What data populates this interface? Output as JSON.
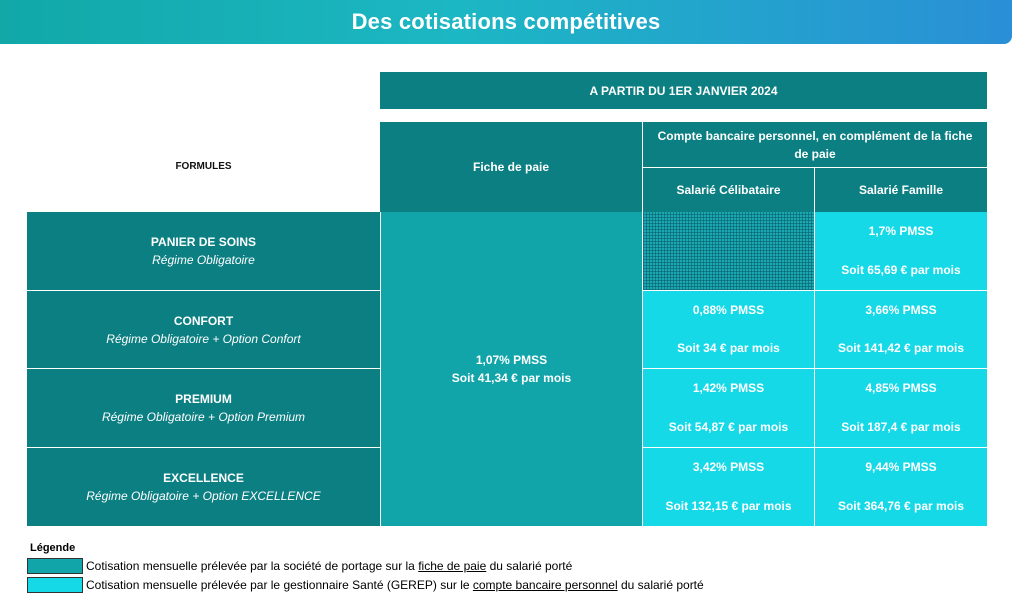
{
  "banner": {
    "title": "Des cotisations compétitives"
  },
  "header": {
    "period": "A PARTIR DU 1ER JANVIER 2024",
    "formules": "FORMULES",
    "fiche_de_paie": "Fiche de paie",
    "compte_bancaire": "Compte bancaire personnel, en complément de la fiche de paie",
    "salarie_celibataire": "Salarié Célibataire",
    "salarie_famille": "Salarié Famille"
  },
  "fiche_value": {
    "rate": "1,07% PMSS",
    "amount": "Soit 41,34 € par mois"
  },
  "rows": [
    {
      "name": "PANIER DE SOINS",
      "desc": "Régime Obligatoire",
      "celibataire": {
        "rate": "",
        "amount": ""
      },
      "famille": {
        "rate": "1,7% PMSS",
        "amount": "Soit 65,69 € par mois"
      }
    },
    {
      "name": "CONFORT",
      "desc": "Régime Obligatoire + Option Confort",
      "celibataire": {
        "rate": "0,88% PMSS",
        "amount": "Soit 34 € par mois"
      },
      "famille": {
        "rate": "3,66% PMSS",
        "amount": "Soit 141,42 € par mois"
      }
    },
    {
      "name": "PREMIUM",
      "desc": "Régime Obligatoire + Option Premium",
      "celibataire": {
        "rate": "1,42% PMSS",
        "amount": "Soit 54,87 € par mois"
      },
      "famille": {
        "rate": "4,85% PMSS",
        "amount": "Soit 187,4 € par mois"
      }
    },
    {
      "name": "EXCELLENCE",
      "desc": "Régime Obligatoire + Option EXCELLENCE",
      "celibataire": {
        "rate": "3,42% PMSS",
        "amount": "Soit 132,15 € par mois"
      },
      "famille": {
        "rate": "9,44% PMSS",
        "amount": "Soit 364,76 € par mois"
      }
    }
  ],
  "legend": {
    "title": "Légende",
    "item1": {
      "before": "Cotisation mensuelle prélevée par la société de portage sur la ",
      "link": "fiche de paie",
      "after": " du salarié porté",
      "color": "#11a5aa"
    },
    "item2": {
      "before": "Cotisation mensuelle prélevée par le gestionnaire Santé (GEREP) sur le ",
      "link": "compte bancaire personnel",
      "after": " du salarié porté",
      "color": "#16d9e8"
    }
  },
  "colors": {
    "dark": "#0c7f82",
    "mid": "#11a5aa",
    "light": "#16d9e8"
  }
}
